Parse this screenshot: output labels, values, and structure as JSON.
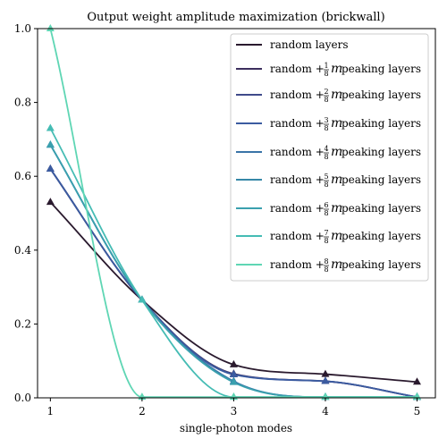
{
  "chart_data": {
    "type": "line",
    "title": "Output weight amplitude maximization (brickwall)",
    "xlabel": "single-photon modes",
    "ylabel": "",
    "x": [
      1,
      2,
      3,
      4,
      5
    ],
    "xlim": [
      0.86,
      5.2
    ],
    "ylim": [
      0,
      1.0
    ],
    "xticks": [
      "1",
      "2",
      "3",
      "4",
      "5"
    ],
    "yticks": [
      "0.0",
      "0.2",
      "0.4",
      "0.6",
      "0.8",
      "1.0"
    ],
    "grid": false,
    "legend_position": "upper-right",
    "marker": "triangle",
    "series": [
      {
        "name": "random layers",
        "prefix": "random layers",
        "numerator": "",
        "denominator": "",
        "suffix": "",
        "color": "#2a1a2e",
        "values": [
          0.53,
          0.265,
          0.09,
          0.064,
          0.043
        ]
      },
      {
        "name": "random + 1/8 m peaking layers",
        "prefix": "random + ",
        "numerator": "1",
        "denominator": "8",
        "suffix": " peaking layers",
        "color": "#3c2f5e",
        "values": [
          0.62,
          0.265,
          0.065,
          0.045,
          0.002
        ]
      },
      {
        "name": "random + 2/8 m peaking layers",
        "prefix": "random + ",
        "numerator": "2",
        "denominator": "8",
        "suffix": " peaking layers",
        "color": "#3f4a8a",
        "values": [
          0.62,
          0.265,
          0.064,
          0.045,
          0.002
        ]
      },
      {
        "name": "random + 3/8 m peaking layers",
        "prefix": "random + ",
        "numerator": "3",
        "denominator": "8",
        "suffix": " peaking layers",
        "color": "#3b5ba0",
        "values": [
          0.62,
          0.265,
          0.063,
          0.045,
          0.002
        ]
      },
      {
        "name": "random + 4/8 m peaking layers",
        "prefix": "random + ",
        "numerator": "4",
        "denominator": "8",
        "suffix": " peaking layers",
        "color": "#3a74a8",
        "values": [
          0.685,
          0.265,
          0.045,
          0.002,
          0.002
        ]
      },
      {
        "name": "random + 5/8 m peaking layers",
        "prefix": "random + ",
        "numerator": "5",
        "denominator": "8",
        "suffix": " peaking layers",
        "color": "#3688a8",
        "values": [
          0.685,
          0.265,
          0.043,
          0.002,
          0.002
        ]
      },
      {
        "name": "random + 6/8 m peaking layers",
        "prefix": "random + ",
        "numerator": "6",
        "denominator": "8",
        "suffix": " peaking layers",
        "color": "#3aa0ae",
        "values": [
          0.685,
          0.265,
          0.042,
          0.002,
          0.002
        ]
      },
      {
        "name": "random + 7/8 m peaking layers",
        "prefix": "random + ",
        "numerator": "7",
        "denominator": "8",
        "suffix": " peaking layers",
        "color": "#45bcb4",
        "values": [
          0.73,
          0.265,
          0.002,
          0.002,
          0.002
        ]
      },
      {
        "name": "random + 8/8 m peaking layers",
        "prefix": "random + ",
        "numerator": "8",
        "denominator": "8",
        "suffix": " peaking layers",
        "color": "#5fd6b4",
        "values": [
          1.0,
          0.002,
          0.002,
          0.002,
          0.002
        ]
      }
    ]
  }
}
